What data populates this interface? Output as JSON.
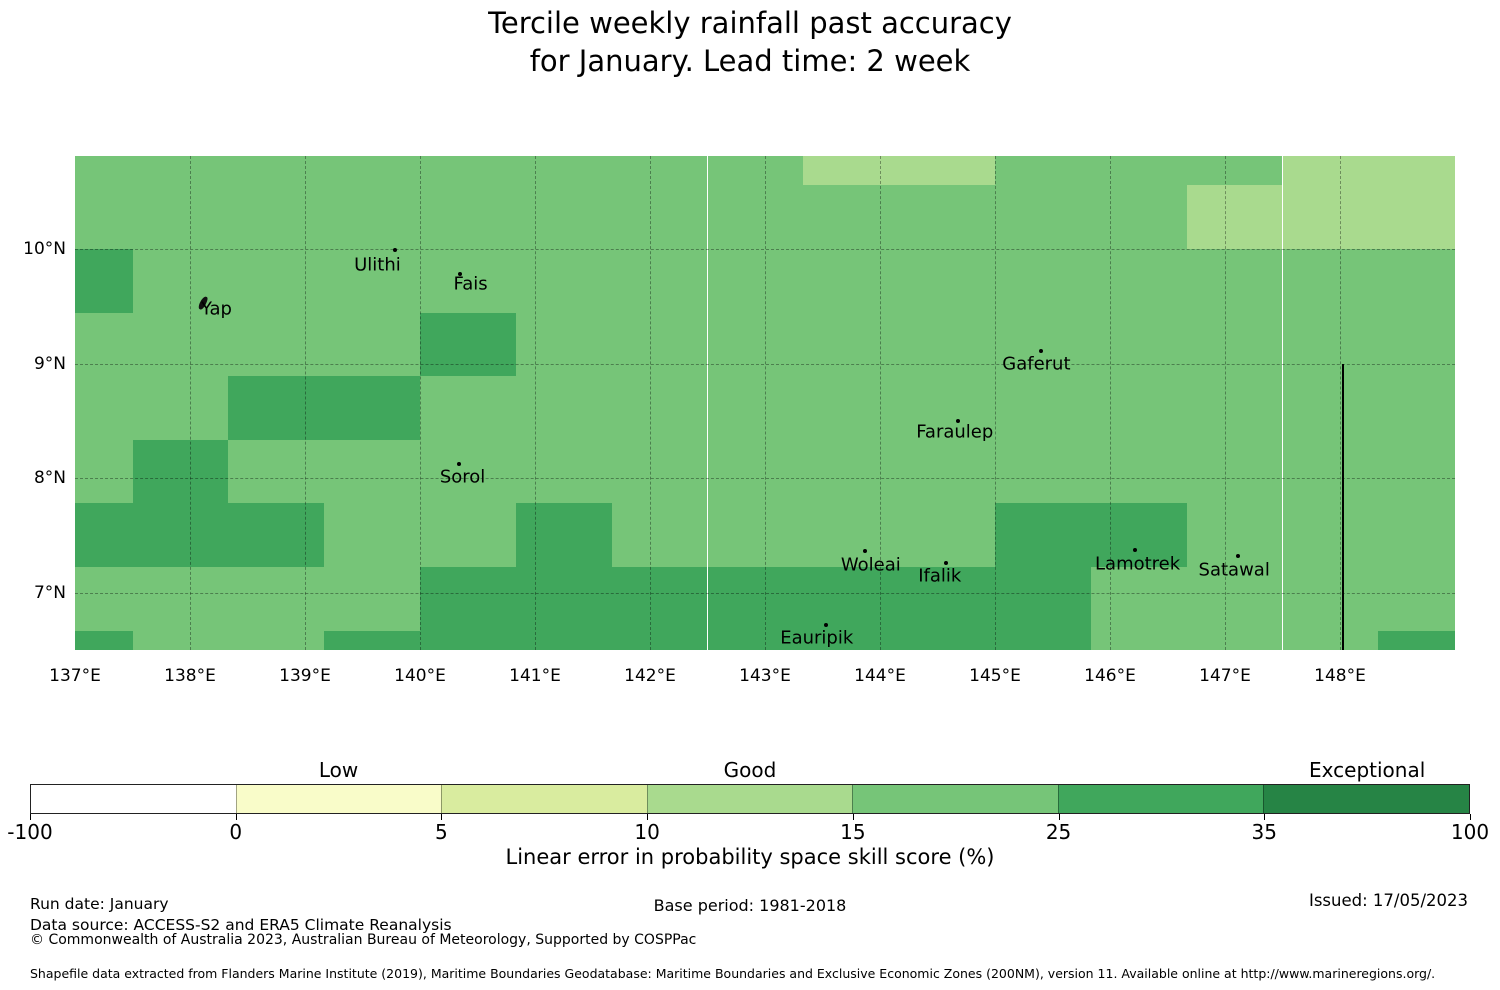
{
  "title": {
    "line1": "Tercile weekly rainfall past accuracy",
    "line2": "for January. Lead time: 2 week"
  },
  "chart_data": {
    "type": "heatmap",
    "title": "Tercile weekly rainfall past accuracy for January. Lead time: 2 week",
    "projection": {
      "lon_min": 137.0,
      "lon_max": 149.0,
      "lat_min": 6.5,
      "lat_max": 10.81
    },
    "x_ticks": [
      {
        "lon": 137,
        "label": "137°E"
      },
      {
        "lon": 138,
        "label": "138°E"
      },
      {
        "lon": 139,
        "label": "139°E"
      },
      {
        "lon": 140,
        "label": "140°E"
      },
      {
        "lon": 141,
        "label": "141°E"
      },
      {
        "lon": 142,
        "label": "142°E"
      },
      {
        "lon": 143,
        "label": "143°E"
      },
      {
        "lon": 144,
        "label": "144°E"
      },
      {
        "lon": 145,
        "label": "145°E"
      },
      {
        "lon": 146,
        "label": "146°E"
      },
      {
        "lon": 147,
        "label": "147°E"
      },
      {
        "lon": 148,
        "label": "148°E"
      }
    ],
    "y_ticks": [
      {
        "lat": 10,
        "label": "10°N"
      },
      {
        "lat": 9,
        "label": "9°N"
      },
      {
        "lat": 8,
        "label": "8°N"
      },
      {
        "lat": 7,
        "label": "7°N"
      }
    ],
    "grid_lines": {
      "lons": [
        138,
        139,
        140,
        141,
        142,
        143,
        144,
        145,
        146,
        147,
        148
      ],
      "lats": [
        10,
        9,
        8,
        7
      ]
    },
    "grid": {
      "lon_bounds": [
        137.0,
        137.5,
        138.333,
        139.167,
        140.0,
        140.833,
        141.667,
        142.5,
        143.333,
        144.167,
        145.0,
        145.833,
        146.667,
        147.5,
        148.333,
        149.0
      ],
      "lat_bounds": [
        10.81,
        10.556,
        10.0,
        9.444,
        8.889,
        8.333,
        7.778,
        7.222,
        6.667,
        6.5
      ],
      "cell_segment_index": [
        [
          4,
          4,
          4,
          4,
          4,
          4,
          4,
          4,
          3,
          3,
          4,
          4,
          4,
          3,
          3
        ],
        [
          4,
          4,
          4,
          4,
          4,
          4,
          4,
          4,
          4,
          4,
          4,
          4,
          3,
          3,
          3
        ],
        [
          5,
          4,
          4,
          4,
          4,
          4,
          4,
          4,
          4,
          4,
          4,
          4,
          4,
          4,
          4
        ],
        [
          4,
          4,
          4,
          4,
          5,
          4,
          4,
          4,
          4,
          4,
          4,
          4,
          4,
          4,
          4
        ],
        [
          4,
          4,
          5,
          5,
          4,
          4,
          4,
          4,
          4,
          4,
          4,
          4,
          4,
          4,
          4
        ],
        [
          4,
          5,
          4,
          4,
          4,
          4,
          4,
          4,
          4,
          4,
          4,
          4,
          4,
          4,
          4
        ],
        [
          5,
          5,
          5,
          4,
          4,
          5,
          4,
          4,
          4,
          4,
          5,
          5,
          4,
          4,
          4
        ],
        [
          4,
          4,
          4,
          4,
          5,
          5,
          5,
          5,
          5,
          5,
          5,
          4,
          4,
          4,
          4
        ],
        [
          5,
          4,
          4,
          5,
          5,
          5,
          5,
          5,
          5,
          5,
          5,
          4,
          4,
          4,
          5
        ]
      ]
    },
    "islands": [
      {
        "name": "Ulithi",
        "label_lon": 139.63,
        "label_lat": 9.86,
        "dot_lon": 139.78,
        "dot_lat": 9.99,
        "shape": "dot"
      },
      {
        "name": "Fais",
        "label_lon": 140.44,
        "label_lat": 9.69,
        "dot_lon": 140.35,
        "dot_lat": 9.78,
        "shape": "dot"
      },
      {
        "name": "Yap",
        "label_lon": 138.23,
        "label_lat": 9.48,
        "dot_lon": 138.11,
        "dot_lat": 9.53,
        "shape": "blob"
      },
      {
        "name": "Gaferut",
        "label_lon": 145.36,
        "label_lat": 9.0,
        "dot_lon": 145.4,
        "dot_lat": 9.11,
        "shape": "dot"
      },
      {
        "name": "Faraulep",
        "label_lon": 144.65,
        "label_lat": 8.4,
        "dot_lon": 144.68,
        "dot_lat": 8.5,
        "shape": "dot"
      },
      {
        "name": "Sorol",
        "label_lon": 140.37,
        "label_lat": 8.01,
        "dot_lon": 140.34,
        "dot_lat": 8.12,
        "shape": "dot"
      },
      {
        "name": "Woleai",
        "label_lon": 143.92,
        "label_lat": 7.24,
        "dot_lon": 143.87,
        "dot_lat": 7.36,
        "shape": "dot"
      },
      {
        "name": "Ifalik",
        "label_lon": 144.52,
        "label_lat": 7.14,
        "dot_lon": 144.57,
        "dot_lat": 7.26,
        "shape": "dot"
      },
      {
        "name": "Lamotrek",
        "label_lon": 146.24,
        "label_lat": 7.25,
        "dot_lon": 146.22,
        "dot_lat": 7.37,
        "shape": "dot"
      },
      {
        "name": "Satawal",
        "label_lon": 147.08,
        "label_lat": 7.2,
        "dot_lon": 147.11,
        "dot_lat": 7.32,
        "shape": "dot"
      },
      {
        "name": "Eauripik",
        "label_lon": 143.45,
        "label_lat": 6.6,
        "dot_lon": 143.53,
        "dot_lat": 6.72,
        "shape": "dot"
      }
    ],
    "boundary_line": {
      "lon": 148.02,
      "lat_top": 9.0,
      "lat_bottom": 6.5
    },
    "colorbar": {
      "ticks": [
        "-100",
        "0",
        "5",
        "10",
        "15",
        "25",
        "35",
        "100"
      ],
      "segment_colors": [
        "#ffffff",
        "#f9fcc9",
        "#d9ec9f",
        "#a9da8e",
        "#76c578",
        "#40a75c",
        "#268445"
      ],
      "category_labels": [
        {
          "text": "Low",
          "segment": 1
        },
        {
          "text": "Good",
          "segment": 3
        },
        {
          "text": "Exceptional",
          "segment": 6
        }
      ],
      "axis_label": "Linear error in probability space skill score (%)"
    }
  },
  "footer": {
    "run_date": "Run date: January",
    "data_source": "Data source: ACCESS-S2 and ERA5 Climate Reanalysis",
    "copyright": "© Commonwealth of Australia 2023, Australian Bureau of Meteorology, Supported by COSPPac",
    "base_period": "Base period: 1981-2018",
    "issued": "Issued: 17/05/2023",
    "shapefile_note": "Shapefile data extracted from Flanders Marine Institute (2019), Maritime Boundaries Geodatabase: Maritime Boundaries and Exclusive Economic Zones (200NM), version 11. Available online at http://www.marineregions.org/."
  }
}
